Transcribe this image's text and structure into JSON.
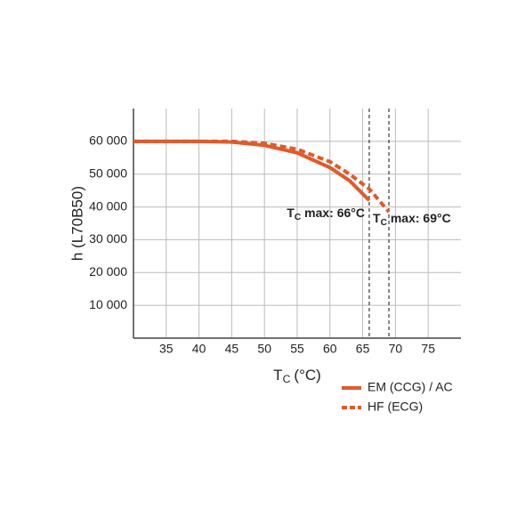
{
  "chart_data": {
    "type": "line",
    "x_label": {
      "symbol": "T",
      "subscript": "C",
      "text": "(°C)"
    },
    "y_label": "h (L70B50)",
    "x": [
      30,
      35,
      40,
      45,
      50,
      55,
      60,
      63,
      66,
      69
    ],
    "series": [
      {
        "name": "EM (CCG) / AC",
        "color": "#e05a2b",
        "dash": false,
        "values": [
          60000,
          60000,
          60000,
          59800,
          58800,
          56500,
          52000,
          48000,
          42000,
          null
        ]
      },
      {
        "name": "HF (ECG)",
        "color": "#e05a2b",
        "dash": true,
        "values": [
          60000,
          60000,
          60000,
          60000,
          59400,
          57600,
          53800,
          50000,
          45500,
          38500
        ]
      }
    ],
    "xlim": [
      30,
      80
    ],
    "ylim": [
      0,
      70000
    ],
    "xticks": [
      35,
      40,
      45,
      50,
      55,
      60,
      65,
      70,
      75
    ],
    "yticks": [
      {
        "value": 10000,
        "label": "10 000"
      },
      {
        "value": 20000,
        "label": "20 000"
      },
      {
        "value": 30000,
        "label": "30 000"
      },
      {
        "value": 40000,
        "label": "40 000"
      },
      {
        "value": 50000,
        "label": "50 000"
      },
      {
        "value": 60000,
        "label": "60 000"
      }
    ],
    "grid": true,
    "limits": [
      66,
      69
    ],
    "annotations": [
      {
        "symbol": "T",
        "subscript": "C",
        "text": "max: 66°C"
      },
      {
        "symbol": "T",
        "subscript": "C",
        "text": "max: 69°C"
      }
    ],
    "legend": "bottom-right"
  }
}
